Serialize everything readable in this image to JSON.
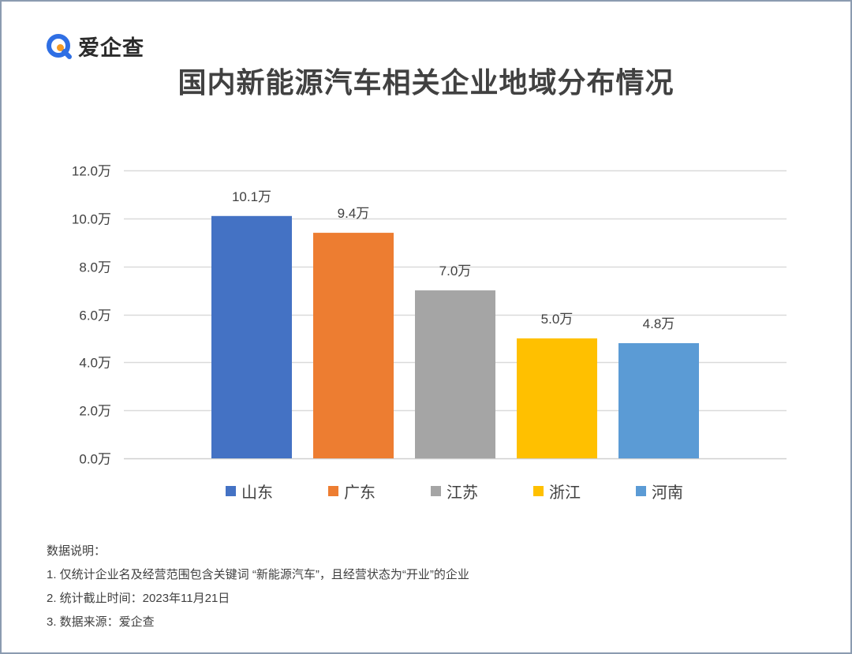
{
  "logo": {
    "text": "爱企查",
    "icon": "search-magnifier-icon",
    "colors": {
      "ring": "#2f6fe4",
      "dot": "#f59a23"
    }
  },
  "chart_data": {
    "type": "bar",
    "title": "国内新能源汽车相关企业地域分布情况",
    "categories": [
      "山东",
      "广东",
      "江苏",
      "浙江",
      "河南"
    ],
    "values": [
      10.1,
      9.4,
      7.0,
      5.0,
      4.8
    ],
    "unit": "万",
    "data_labels": [
      "10.1万",
      "9.4万",
      "7.0万",
      "5.0万",
      "4.8万"
    ],
    "colors": [
      "#4472C4",
      "#ED7D31",
      "#A5A5A5",
      "#FFC000",
      "#5B9BD5"
    ],
    "ylim": [
      0,
      12
    ],
    "yticks": [
      0,
      2,
      4,
      6,
      8,
      10,
      12
    ],
    "ytick_labels": [
      "0.0万",
      "2.0万",
      "4.0万",
      "6.0万",
      "8.0万",
      "10.0万",
      "12.0万"
    ],
    "xlabel": "",
    "ylabel": "",
    "grid": true,
    "legend": "bottom"
  },
  "notes": {
    "heading": "数据说明：",
    "items": [
      "1. 仅统计企业名及经营范围包含关键词 “新能源汽车”，且经营状态为“开业”的企业",
      "2. 统计截止时间：2023年11月21日",
      "3. 数据来源：爱企查"
    ]
  }
}
